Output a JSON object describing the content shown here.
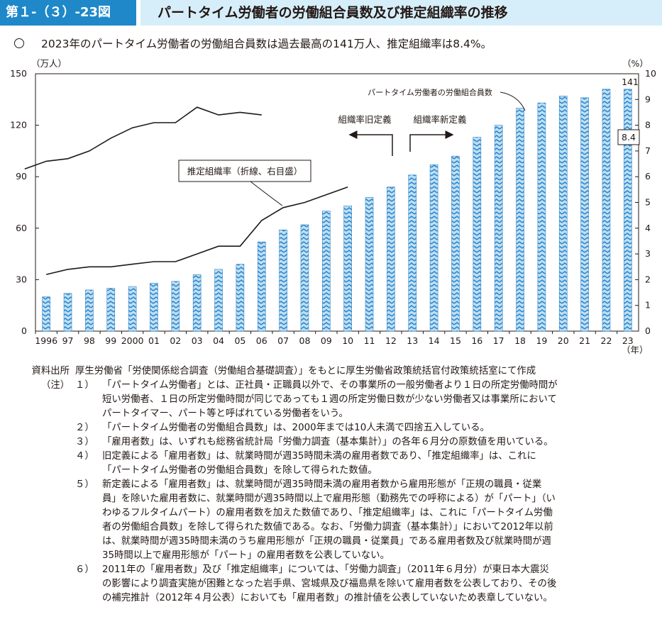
{
  "header": {
    "badge": "第１-（３）-23図",
    "title": "パートタイム労働者の労働組合員数及び推定組織率の推移"
  },
  "summary": "2023年のパートタイム労働者の労働組合員数は過去最高の141万人、推定組織率は8.4%。",
  "chart_data": {
    "type": "bar",
    "x_unit": "（年）",
    "categories": [
      "1996",
      "97",
      "98",
      "99",
      "2000",
      "01",
      "02",
      "03",
      "04",
      "05",
      "06",
      "07",
      "08",
      "09",
      "10",
      "11",
      "12",
      "13",
      "14",
      "15",
      "16",
      "17",
      "18",
      "19",
      "20",
      "21",
      "22",
      "23"
    ],
    "series": [
      {
        "name": "パートタイム労働者の労働組合員数",
        "type": "bar",
        "axis": "left",
        "unit": "（万人）",
        "values": [
          20,
          22,
          24,
          25,
          26,
          28,
          29,
          33,
          36,
          39,
          52,
          59,
          62,
          70,
          73,
          78,
          84,
          91,
          97,
          102,
          113,
          120,
          130,
          133,
          137,
          136,
          141,
          141
        ]
      },
      {
        "name": "推定組織率（折線、右目盛）",
        "type": "line",
        "axis": "right",
        "unit": "（%）",
        "segments": [
          {
            "label": "組織率旧定義",
            "from": "1996",
            "to": "2010",
            "values": [
              2.2,
              2.4,
              2.5,
              2.5,
              2.6,
              2.7,
              2.7,
              3.0,
              3.3,
              3.3,
              4.3,
              4.8,
              5.0,
              5.3,
              5.6
            ]
          },
          {
            "label": "組織率新定義",
            "from": "2012",
            "to": "2023",
            "values": [
              6.3,
              6.6,
              6.7,
              7.0,
              7.5,
              7.9,
              8.1,
              8.1,
              8.7,
              8.4,
              8.5,
              8.4
            ]
          }
        ]
      }
    ],
    "y_left": {
      "unit": "（万人）",
      "min": 0,
      "max": 150,
      "ticks": [
        "0",
        "30",
        "60",
        "90",
        "120",
        "150"
      ]
    },
    "y_right": {
      "unit": "（%）",
      "min": 0,
      "max": 10,
      "ticks": [
        "0",
        "1",
        "2",
        "3",
        "4",
        "5",
        "6",
        "7",
        "8",
        "9",
        "10"
      ]
    },
    "annotations": {
      "members_label": "パートタイム労働者の労働組合員数",
      "rate_label": "推定組織率（折線、右目盛）",
      "old_def": "組織率旧定義",
      "new_def": "組織率新定義",
      "last_bar_value": "141",
      "last_rate_value": "8.4"
    },
    "bar_color": "#3d8fd0",
    "line_color": "#1a1a1a"
  },
  "notes": {
    "source_label": "資料出所",
    "source_text": "厚生労働省「労使関係総合調査（労働組合基礎調査）」をもとに厚生労働省政策統括官付政策統括室にて作成",
    "notes_label": "（注）",
    "items": [
      {
        "num": "１）",
        "lines": [
          "「パートタイム労働者」とは、正社員・正職員以外で、その事業所の一般労働者より１日の所定労働時間が",
          "短い労働者、１日の所定労働時間が同じであっても１週の所定労働日数が少ない労働者又は事業所において",
          "パートタイマー、パート等と呼ばれている労働者をいう。"
        ]
      },
      {
        "num": "２）",
        "lines": [
          "「パートタイム労働者の労働組合員数」は、2000年までは10人未満で四捨五入している。"
        ]
      },
      {
        "num": "３）",
        "lines": [
          "「雇用者数」は、いずれも総務省統計局「労働力調査（基本集計）」の各年６月分の原数値を用いている。"
        ]
      },
      {
        "num": "４）",
        "lines": [
          "旧定義による「雇用者数」は、就業時間が週35時間未満の雇用者数であり、「推定組織率」は、これに",
          "「パートタイム労働者の労働組合員数」を除して得られた数値。"
        ]
      },
      {
        "num": "５）",
        "lines": [
          "新定義による「雇用者数」は、就業時間が週35時間未満の雇用者数から雇用形態が「正規の職員・従業",
          "員」を除いた雇用者数に、就業時間が週35時間以上で雇用形態（勤務先での呼称による）が「パート」（い",
          "わゆるフルタイムパート）の雇用者数を加えた数値であり、「推定組織率」は、これに「パートタイム労働",
          "者の労働組合員数」を除して得られた数値である。なお、「労働力調査（基本集計）」において2012年以前",
          "は、就業時間が週35時間未満のうち雇用形態が「正規の職員・従業員」である雇用者数及び就業時間が週",
          "35時間以上で雇用形態が「パート」の雇用者数を公表していない。"
        ]
      },
      {
        "num": "６）",
        "lines": [
          "2011年の「雇用者数」及び「推定組織率」については、「労働力調査」（2011年６月分）が東日本大震災",
          "の影響により調査実施が困難となった岩手県、宮城県及び福島県を除いて雇用者数を公表しており、その後",
          "の補完推計（2012年４月公表）においても「雇用者数」の推計値を公表していないため表章していない。"
        ]
      }
    ]
  }
}
